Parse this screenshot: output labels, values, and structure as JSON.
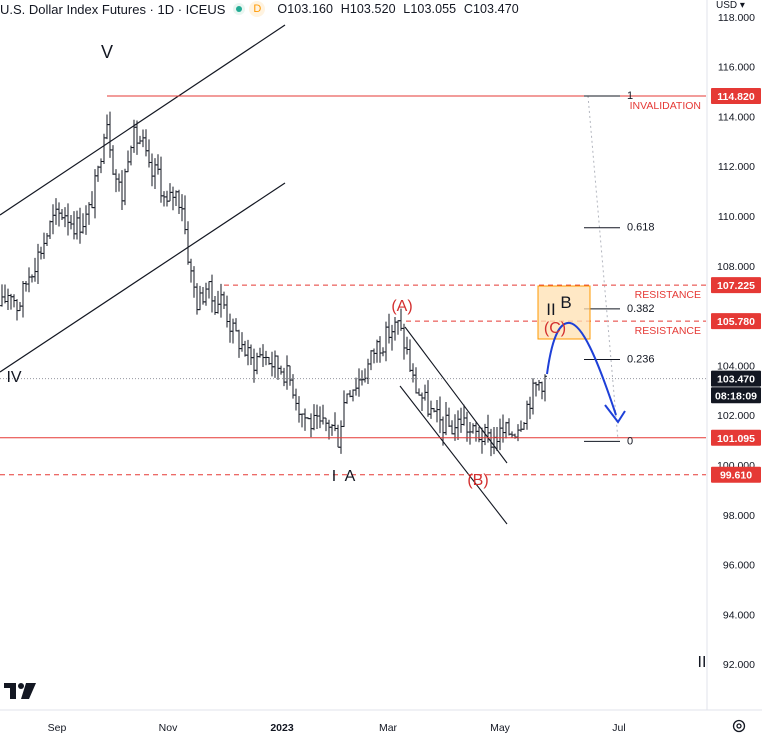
{
  "header": {
    "symbol": "U.S. Dollar Index Futures · 1D · ICEUS",
    "badge": "D",
    "open": "O103.160",
    "high": "H103.520",
    "low": "L103.055",
    "close": "C103.470"
  },
  "currency": "USD ▾",
  "colors": {
    "candle": "#131722",
    "red_line": "#e53935",
    "wave_red": "#d32f2f",
    "arrow_blue": "#1e40d8",
    "zone_fill": "#ffe0b2",
    "zone_border": "#ff9800"
  },
  "chart_data": {
    "type": "candlestick",
    "x_tick_labels": [
      "Sep",
      "Nov",
      "2023",
      "Mar",
      "May",
      "Jul"
    ],
    "y_tick_labels": [
      "118.000",
      "116.000",
      "114.000",
      "112.000",
      "110.000",
      "108.000",
      "104.000",
      "102.000",
      "100.000",
      "98.000",
      "96.000",
      "94.000",
      "92.000"
    ],
    "ylim": [
      91.0,
      118.8
    ],
    "price_labels": [
      {
        "text": "114.820",
        "value": 114.82,
        "kind": "red"
      },
      {
        "text": "107.225",
        "value": 107.225,
        "kind": "red"
      },
      {
        "text": "105.780",
        "value": 105.78,
        "kind": "red"
      },
      {
        "text": "103.470",
        "value": 103.47,
        "kind": "dark"
      },
      {
        "text": "08:18:09",
        "value": 102.8,
        "kind": "dark"
      },
      {
        "text": "101.095",
        "value": 101.095,
        "kind": "red"
      },
      {
        "text": "99.610",
        "value": 99.61,
        "kind": "red"
      }
    ],
    "levels": [
      {
        "value": 114.82,
        "style": "solid",
        "label": "INVALIDATION"
      },
      {
        "value": 107.225,
        "style": "dashed",
        "label": "RESISTANCE"
      },
      {
        "value": 105.78,
        "style": "dashed",
        "label": "RESISTANCE"
      },
      {
        "value": 101.095,
        "style": "solid",
        "label": ""
      },
      {
        "value": 99.61,
        "style": "dashed",
        "label": ""
      }
    ],
    "last_price": 103.47,
    "fibonacci": [
      {
        "label": "1",
        "value": 114.82
      },
      {
        "label": "0.618",
        "value": 109.53
      },
      {
        "label": "0.382",
        "value": 106.27
      },
      {
        "label": "0.236",
        "value": 104.24
      },
      {
        "label": "0",
        "value": 100.95
      }
    ],
    "wave_labels": [
      {
        "text": "V",
        "color": "dark"
      },
      {
        "text": "IV",
        "color": "dark"
      },
      {
        "text": "I",
        "color": "dark"
      },
      {
        "text": "A",
        "color": "dark"
      },
      {
        "text": "(A)",
        "color": "red"
      },
      {
        "text": "(B)",
        "color": "red"
      },
      {
        "text": "(C)",
        "color": "red"
      },
      {
        "text": "II",
        "color": "dark"
      },
      {
        "text": "B",
        "color": "dark"
      },
      {
        "text": "II",
        "color": "dark"
      }
    ],
    "series": [
      {
        "name": "",
        "key_closes": [
          {
            "month": "Aug",
            "close": 106.5
          },
          {
            "month": "late Sep",
            "close": 114.2
          },
          {
            "month": "Oct",
            "close": 112.0
          },
          {
            "month": "Nov",
            "close": 106.0
          },
          {
            "month": "Dec",
            "close": 104.0
          },
          {
            "month": "Jan",
            "close": 102.0
          },
          {
            "month": "early Feb",
            "close": 101.0
          },
          {
            "month": "early Mar",
            "close": 105.6
          },
          {
            "month": "Apr",
            "close": 101.6
          },
          {
            "month": "May",
            "close": 101.3
          },
          {
            "month": "late May",
            "close": 103.47
          }
        ]
      }
    ]
  }
}
